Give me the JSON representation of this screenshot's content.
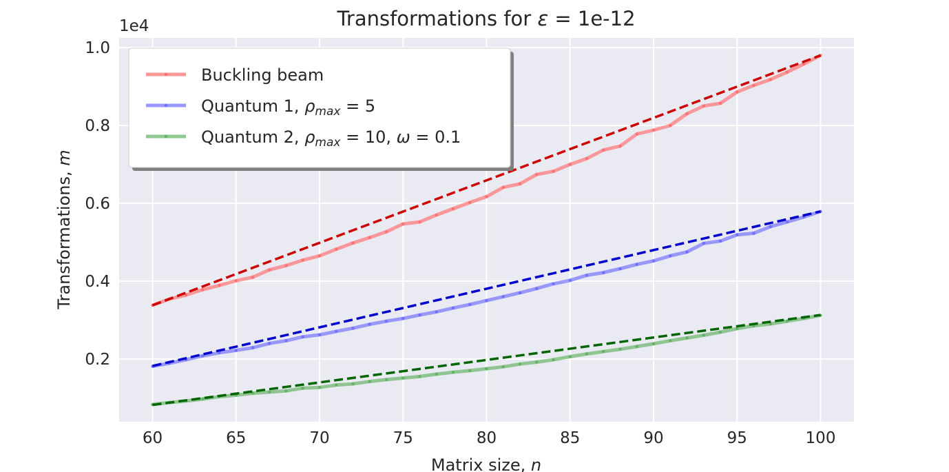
{
  "chart_data": {
    "type": "line",
    "title": "Transformations for ε = 1e-12",
    "xlabel": "Matrix size, n",
    "ylabel": "Transformations, m",
    "y_offset_label": "1e4",
    "xlim": [
      58,
      102
    ],
    "ylim": [
      0.0388,
      1.025
    ],
    "x_ticks": [
      60,
      65,
      70,
      75,
      80,
      85,
      90,
      95,
      100
    ],
    "y_ticks": [
      0.2,
      0.4,
      0.6,
      0.8,
      1.0
    ],
    "y_tick_labels": [
      "0.2",
      "0.4",
      "0.6",
      "0.8",
      "1.0"
    ],
    "grid": true,
    "legend_position": "top-left",
    "x": [
      60,
      61,
      62,
      63,
      64,
      65,
      66,
      67,
      68,
      69,
      70,
      71,
      72,
      73,
      74,
      75,
      76,
      77,
      78,
      79,
      80,
      81,
      82,
      83,
      84,
      85,
      86,
      87,
      88,
      89,
      90,
      91,
      92,
      93,
      94,
      95,
      96,
      97,
      98,
      99,
      100
    ],
    "series": [
      {
        "name": "Buckling beam",
        "color": "#ff6b6b",
        "fit_color": "#cc0000",
        "values": [
          0.338,
          0.354,
          0.364,
          0.378,
          0.389,
          0.401,
          0.41,
          0.429,
          0.44,
          0.454,
          0.465,
          0.482,
          0.498,
          0.512,
          0.527,
          0.547,
          0.552,
          0.57,
          0.586,
          0.602,
          0.617,
          0.641,
          0.65,
          0.674,
          0.682,
          0.7,
          0.715,
          0.737,
          0.747,
          0.778,
          0.788,
          0.8,
          0.83,
          0.85,
          0.857,
          0.886,
          0.903,
          0.918,
          0.937,
          0.958,
          0.98
        ],
        "fit": [
          0.338,
          0.98
        ]
      },
      {
        "name": "Quantum 1, ρmax = 5",
        "color": "#6b6bff",
        "fit_color": "#0000cc",
        "values": [
          0.181,
          0.189,
          0.198,
          0.208,
          0.216,
          0.222,
          0.229,
          0.24,
          0.247,
          0.257,
          0.262,
          0.271,
          0.279,
          0.289,
          0.297,
          0.304,
          0.313,
          0.321,
          0.331,
          0.34,
          0.35,
          0.36,
          0.37,
          0.381,
          0.393,
          0.402,
          0.415,
          0.422,
          0.432,
          0.443,
          0.452,
          0.465,
          0.475,
          0.497,
          0.503,
          0.519,
          0.523,
          0.54,
          0.552,
          0.565,
          0.579
        ],
        "fit": [
          0.182,
          0.579
        ]
      },
      {
        "name": "Quantum 2, ρmax = 10, ω = 0.1",
        "color": "#5fb05f",
        "fit_color": "#006400",
        "values": [
          0.083,
          0.088,
          0.092,
          0.097,
          0.103,
          0.107,
          0.112,
          0.115,
          0.118,
          0.125,
          0.127,
          0.133,
          0.136,
          0.142,
          0.147,
          0.151,
          0.155,
          0.161,
          0.166,
          0.17,
          0.175,
          0.18,
          0.187,
          0.192,
          0.198,
          0.206,
          0.213,
          0.219,
          0.225,
          0.232,
          0.239,
          0.247,
          0.254,
          0.261,
          0.269,
          0.278,
          0.285,
          0.29,
          0.297,
          0.304,
          0.312
        ],
        "fit": [
          0.082,
          0.313
        ]
      }
    ]
  }
}
